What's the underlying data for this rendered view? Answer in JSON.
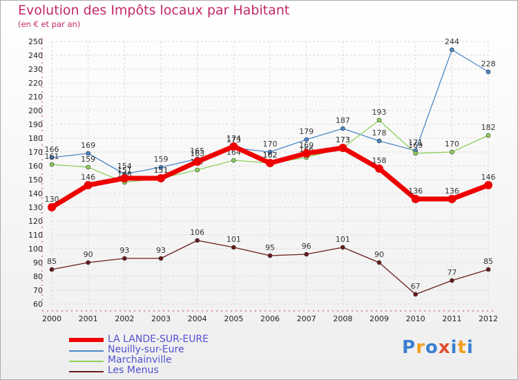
{
  "title": "Evolution des Impôts locaux par Habitant",
  "subtitle": "(en € et par an)",
  "chart_data": {
    "type": "line",
    "title": "Evolution des Impôts locaux par Habitant",
    "subtitle": "(en € et par an)",
    "categories": [
      "2000",
      "2001",
      "2002",
      "2003",
      "2004",
      "2005",
      "2006",
      "2007",
      "2008",
      "2009",
      "2010",
      "2011",
      "2012"
    ],
    "ylim": [
      60,
      250
    ],
    "yticks": [
      60,
      70,
      80,
      90,
      100,
      110,
      120,
      130,
      140,
      150,
      160,
      170,
      180,
      190,
      200,
      210,
      220,
      230,
      240,
      250
    ],
    "grid": true,
    "series": [
      {
        "name": "Neuilly-sur-Eure",
        "color": "#4a86c8",
        "values": [
          166,
          169,
          154,
          159,
          165,
          173,
          170,
          179,
          187,
          178,
          171,
          244,
          228
        ]
      },
      {
        "name": "Marchainville",
        "color": "#8ed05a",
        "values": [
          161,
          159,
          148,
          151,
          157,
          164,
          162,
          166,
          173,
          193,
          169,
          170,
          182
        ]
      },
      {
        "name": "Les Menus",
        "color": "#6b1a1a",
        "values": [
          85,
          90,
          93,
          93,
          106,
          101,
          95,
          96,
          101,
          90,
          67,
          77,
          85
        ]
      },
      {
        "name": "LA LANDE-SUR-EURE",
        "color": "#ee0000",
        "values": [
          130,
          146,
          151,
          151,
          163,
          174,
          162,
          169,
          173,
          158,
          136,
          136,
          146
        ]
      }
    ],
    "legend": [
      "LA LANDE-SUR-EURE",
      "Neuilly-sur-Eure",
      "Marchainville",
      "Les Menus"
    ]
  },
  "logo": [
    "P",
    "r",
    "o",
    "x",
    "i",
    "t",
    "i"
  ],
  "logo_colors": [
    "#3a7fd0",
    "#f0a020",
    "#3a7fd0",
    "#e05030",
    "#3a7fd0",
    "#f0a020",
    "#3a7fd0"
  ]
}
